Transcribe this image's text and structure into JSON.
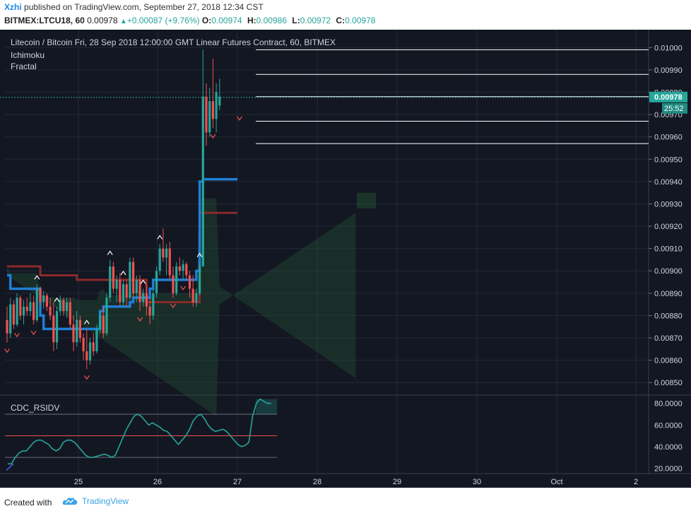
{
  "header": {
    "user": "Xzhi",
    "published_text": "published on TradingView.com, September 27, 2018 12:34 CST",
    "symbol": "BITMEX:LTCU18, 60",
    "last": "0.00978",
    "change": "+0.00087 (+9.76%)",
    "o_label": "O:",
    "o": "0.00974",
    "h_label": "H:",
    "h": "0.00986",
    "l_label": "L:",
    "l": "0.00972",
    "c_label": "C:",
    "c": "0.00978"
  },
  "legend": {
    "title": "Litecoin / Bitcoin Fri, 28 Sep 2018 12:00:00 GMT Linear Futures Contract, 60, BITMEX",
    "indicator1": "Ichimoku",
    "indicator2": "Fractal",
    "rsi_label": "CDC_RSIDV"
  },
  "footer": {
    "created_with": "Created with",
    "brand": "TradingView"
  },
  "colors": {
    "background": "#131722",
    "grid": "#232838",
    "up": "#26a69a",
    "down": "#ef5350",
    "tenkan": "#1e7fd6",
    "kijun": "#8b2a2a",
    "price_tag": "#26a69a",
    "axis_text": "#d1d4dc"
  },
  "chart_data": {
    "type": "candlestick",
    "symbol": "LTCU18",
    "timeframe": "60",
    "price_axis": {
      "ticks": [
        "0.01000",
        "0.00990",
        "0.00980",
        "0.00970",
        "0.00960",
        "0.00950",
        "0.00940",
        "0.00930",
        "0.00920",
        "0.00910",
        "0.00900",
        "0.00890",
        "0.00880",
        "0.00870",
        "0.00860",
        "0.00850"
      ],
      "range": [
        0.00845,
        0.01008
      ]
    },
    "x_axis": {
      "labels": [
        "25",
        "26",
        "27",
        "28",
        "29",
        "30",
        "Oct",
        "2"
      ]
    },
    "current_price_tag": "0.00978",
    "countdown_tag": "25:52",
    "candles_ohlc": [
      [
        0.00878,
        0.00884,
        0.00868,
        0.00872
      ],
      [
        0.00872,
        0.00888,
        0.0087,
        0.00885
      ],
      [
        0.00885,
        0.00887,
        0.00874,
        0.00876
      ],
      [
        0.00876,
        0.0089,
        0.00875,
        0.00888
      ],
      [
        0.00888,
        0.00889,
        0.00878,
        0.0088
      ],
      [
        0.0088,
        0.00887,
        0.00876,
        0.00884
      ],
      [
        0.00884,
        0.00888,
        0.0088,
        0.00882
      ],
      [
        0.00882,
        0.0089,
        0.0088,
        0.00886
      ],
      [
        0.00886,
        0.00889,
        0.00876,
        0.00878
      ],
      [
        0.00878,
        0.00894,
        0.00877,
        0.00892
      ],
      [
        0.00892,
        0.00893,
        0.00884,
        0.00886
      ],
      [
        0.00886,
        0.00891,
        0.00883,
        0.00889
      ],
      [
        0.00889,
        0.0089,
        0.00882,
        0.00884
      ],
      [
        0.00884,
        0.00888,
        0.00878,
        0.0088
      ],
      [
        0.0088,
        0.00886,
        0.00864,
        0.00868
      ],
      [
        0.00868,
        0.00884,
        0.00865,
        0.00882
      ],
      [
        0.00882,
        0.00889,
        0.0088,
        0.00887
      ],
      [
        0.00887,
        0.00888,
        0.0088,
        0.00882
      ],
      [
        0.00882,
        0.00888,
        0.00879,
        0.00886
      ],
      [
        0.00886,
        0.00888,
        0.00874,
        0.00876
      ],
      [
        0.00876,
        0.0088,
        0.00864,
        0.00868
      ],
      [
        0.00868,
        0.00882,
        0.00866,
        0.00878
      ],
      [
        0.00878,
        0.0088,
        0.00868,
        0.0087
      ],
      [
        0.0087,
        0.00872,
        0.0086,
        0.00864
      ],
      [
        0.00864,
        0.00874,
        0.00856,
        0.0086
      ],
      [
        0.0086,
        0.0087,
        0.00858,
        0.00868
      ],
      [
        0.00868,
        0.00872,
        0.00862,
        0.00864
      ],
      [
        0.00864,
        0.00876,
        0.00863,
        0.00874
      ],
      [
        0.00874,
        0.00882,
        0.00872,
        0.0088
      ],
      [
        0.0088,
        0.00884,
        0.0087,
        0.00872
      ],
      [
        0.00872,
        0.0089,
        0.00871,
        0.00888
      ],
      [
        0.00888,
        0.00905,
        0.00886,
        0.00902
      ],
      [
        0.00902,
        0.00904,
        0.0089,
        0.00892
      ],
      [
        0.00892,
        0.00898,
        0.00886,
        0.00896
      ],
      [
        0.00896,
        0.00899,
        0.00884,
        0.00886
      ],
      [
        0.00886,
        0.00896,
        0.00884,
        0.00894
      ],
      [
        0.00894,
        0.00896,
        0.00884,
        0.00888
      ],
      [
        0.00888,
        0.00906,
        0.00887,
        0.00904
      ],
      [
        0.00904,
        0.00906,
        0.00888,
        0.0089
      ],
      [
        0.0089,
        0.00898,
        0.00886,
        0.00896
      ],
      [
        0.00896,
        0.00898,
        0.00882,
        0.00886
      ],
      [
        0.00886,
        0.00892,
        0.00884,
        0.0089
      ],
      [
        0.0089,
        0.00894,
        0.0088,
        0.00884
      ],
      [
        0.00884,
        0.00888,
        0.00876,
        0.0088
      ],
      [
        0.0088,
        0.00892,
        0.00878,
        0.0089
      ],
      [
        0.0089,
        0.00902,
        0.00888,
        0.009
      ],
      [
        0.009,
        0.00912,
        0.00898,
        0.0091
      ],
      [
        0.0091,
        0.00919,
        0.00904,
        0.00906
      ],
      [
        0.00906,
        0.00912,
        0.00898,
        0.0091
      ],
      [
        0.0091,
        0.00913,
        0.00896,
        0.00898
      ],
      [
        0.00898,
        0.00902,
        0.00888,
        0.0089
      ],
      [
        0.0089,
        0.00904,
        0.00889,
        0.00902
      ],
      [
        0.00902,
        0.00906,
        0.00898,
        0.009
      ],
      [
        0.009,
        0.00905,
        0.00896,
        0.00903
      ],
      [
        0.00903,
        0.00904,
        0.00896,
        0.00898
      ],
      [
        0.00898,
        0.009,
        0.00888,
        0.00892
      ],
      [
        0.00892,
        0.00898,
        0.00884,
        0.00886
      ],
      [
        0.00886,
        0.00892,
        0.00884,
        0.0089
      ],
      [
        0.0089,
        0.00904,
        0.00889,
        0.00902
      ],
      [
        0.00902,
        0.00999,
        0.00902,
        0.00978
      ],
      [
        0.00978,
        0.00984,
        0.00956,
        0.00962
      ],
      [
        0.00962,
        0.00982,
        0.0096,
        0.00976
      ],
      [
        0.00976,
        0.00995,
        0.00964,
        0.00968
      ],
      [
        0.00968,
        0.00984,
        0.00962,
        0.0098
      ],
      [
        0.00974,
        0.00986,
        0.00972,
        0.00978
      ]
    ],
    "tenkan_levels": [
      0.00898,
      0.00892,
      0.00892,
      0.00892,
      0.00892,
      0.00892,
      0.00892,
      0.00892,
      0.00892,
      0.00892,
      0.0088,
      0.00874,
      0.00874,
      0.00874,
      0.00874,
      0.00874,
      0.00874,
      0.00874,
      0.00874,
      0.00874,
      0.00874,
      0.00874,
      0.00874,
      0.00874,
      0.00874,
      0.00874,
      0.00874,
      0.00874,
      0.00882,
      0.00884,
      0.00884,
      0.00884,
      0.00884,
      0.00884,
      0.00884,
      0.00884,
      0.00884,
      0.00886,
      0.00888,
      0.00888,
      0.00888,
      0.00888,
      0.00888,
      0.00892,
      0.00896,
      0.00896,
      0.00896,
      0.00896,
      0.00896,
      0.00896,
      0.00896,
      0.00896,
      0.00896,
      0.00896,
      0.00896,
      0.00896,
      0.00896,
      0.009,
      0.0094,
      0.00941,
      0.00941,
      0.00941,
      0.00941,
      0.00941
    ],
    "kijun_levels": [
      0.00902,
      0.00902,
      0.00902,
      0.00902,
      0.00902,
      0.00902,
      0.00902,
      0.00902,
      0.00902,
      0.00902,
      0.00898,
      0.00898,
      0.00898,
      0.00898,
      0.00898,
      0.00898,
      0.00898,
      0.00898,
      0.00898,
      0.00898,
      0.00898,
      0.00896,
      0.00896,
      0.00896,
      0.00896,
      0.00896,
      0.00896,
      0.00896,
      0.00896,
      0.00896,
      0.00896,
      0.00896,
      0.00896,
      0.00896,
      0.00896,
      0.00896,
      0.00896,
      0.00896,
      0.00896,
      0.00896,
      0.00896,
      0.00896,
      0.00886,
      0.00886,
      0.00886,
      0.00886,
      0.00886,
      0.00886,
      0.00886,
      0.00886,
      0.00886,
      0.00886,
      0.00886,
      0.00886,
      0.00886,
      0.00886,
      0.00886,
      0.00886,
      0.00926,
      0.00926,
      0.00926,
      0.00926,
      0.00926,
      0.00926
    ],
    "horizontal_levels": [
      0.00999,
      0.00988,
      0.00978,
      0.00967,
      0.00957
    ],
    "rsi": {
      "axis_ticks": [
        "80.0000",
        "60.0000",
        "40.0000",
        "20.0000"
      ],
      "range": [
        15,
        87
      ],
      "upper_level": 70,
      "mid_level": 50,
      "lower_level": 30,
      "values": [
        24,
        24,
        30,
        34,
        36,
        36,
        40,
        44,
        46,
        46,
        44,
        42,
        38,
        36,
        38,
        44,
        46,
        46,
        44,
        40,
        36,
        32,
        30,
        30,
        31,
        32,
        33,
        32,
        30,
        32,
        40,
        48,
        56,
        62,
        68,
        70,
        68,
        64,
        60,
        62,
        60,
        58,
        55,
        54,
        50,
        46,
        42,
        46,
        50,
        56,
        64,
        68,
        70,
        66,
        60,
        56,
        54,
        55,
        56,
        54,
        50,
        46,
        42,
        40,
        41,
        44,
        68,
        80,
        84,
        82,
        80,
        80
      ]
    }
  }
}
